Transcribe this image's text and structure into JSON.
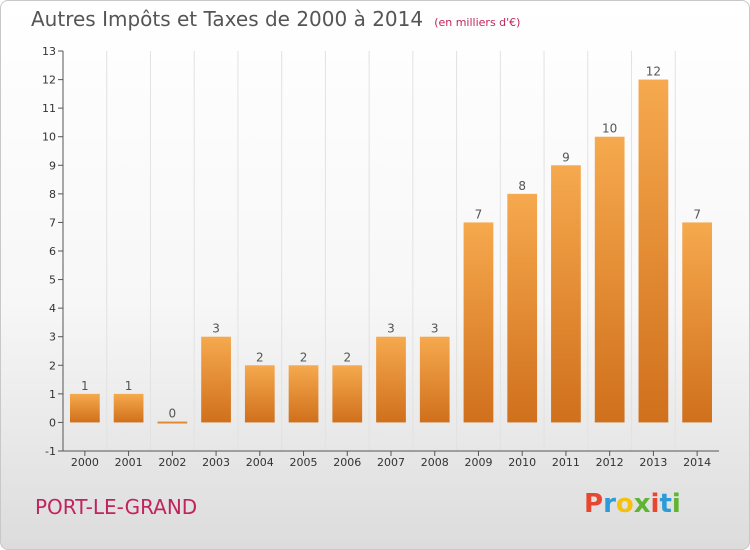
{
  "header": {
    "title": "Autres Impôts et Taxes de 2000 à 2014",
    "subtitle": "(en milliers d'€)"
  },
  "footer": {
    "location": "PORT-LE-GRAND",
    "brand": "Proxiti",
    "brand_colors": [
      "#e8462e",
      "#2e9bd8",
      "#f4c20d",
      "#5db531",
      "#e8462e",
      "#2e9bd8",
      "#5db531"
    ]
  },
  "colors": {
    "bar_light": "#f6a94e",
    "bar_dark": "#d0701c",
    "axis": "#555555",
    "grid": "#e2e2e2",
    "accent": "#c0245c"
  },
  "chart_data": {
    "type": "bar",
    "title": "Autres Impôts et Taxes de 2000 à 2014",
    "subtitle": "(en milliers d'€)",
    "categories": [
      "2000",
      "2001",
      "2002",
      "2003",
      "2004",
      "2005",
      "2006",
      "2007",
      "2008",
      "2009",
      "2010",
      "2011",
      "2012",
      "2013",
      "2014"
    ],
    "values": [
      1,
      1,
      0,
      3,
      2,
      2,
      2,
      3,
      3,
      7,
      8,
      9,
      10,
      12,
      7
    ],
    "ylim": [
      -1,
      13
    ],
    "yticks": [
      -1,
      0,
      1,
      2,
      3,
      4,
      5,
      6,
      7,
      8,
      9,
      10,
      11,
      12,
      13
    ],
    "grid": true,
    "legend": "none"
  }
}
